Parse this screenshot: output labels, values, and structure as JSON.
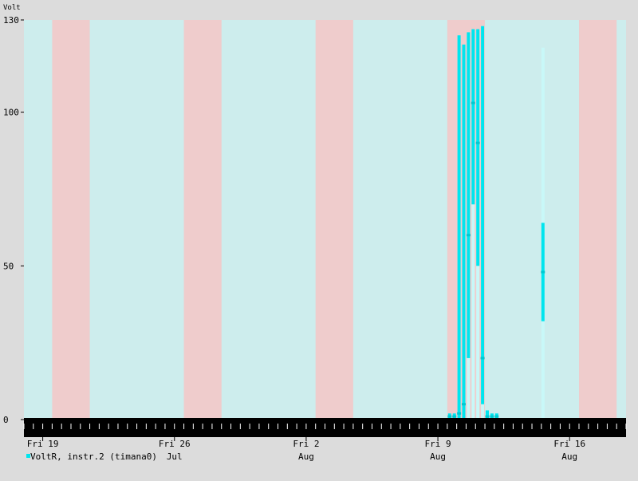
{
  "chart_data": {
    "type": "area",
    "unit_label": "Volt",
    "ylim": [
      0,
      130
    ],
    "y_ticks": [
      0,
      50,
      100,
      130
    ],
    "y_tick_labels": [
      "0",
      "50",
      "100",
      "130"
    ],
    "x_range": [
      "2024-07-18T00:00",
      "2024-08-19T00:00"
    ],
    "x_ticks": [
      {
        "date": "2024-07-19",
        "line1": "Fri 19",
        "line2": ""
      },
      {
        "date": "2024-07-26",
        "line1": "Fri 26",
        "line2": "Jul"
      },
      {
        "date": "2024-08-02",
        "line1": "Fri 2",
        "line2": "Aug"
      },
      {
        "date": "2024-08-09",
        "line1": "Fri 9",
        "line2": "Aug"
      },
      {
        "date": "2024-08-16",
        "line1": "Fri 16",
        "line2": "Aug"
      }
    ],
    "weekend_bands": [
      [
        "2024-07-19T12:00",
        "2024-07-21T12:00"
      ],
      [
        "2024-07-26T12:00",
        "2024-07-28T12:00"
      ],
      [
        "2024-08-02T12:00",
        "2024-08-04T12:00"
      ],
      [
        "2024-08-09T12:00",
        "2024-08-11T12:00"
      ],
      [
        "2024-08-16T12:00",
        "2024-08-18T12:00"
      ]
    ],
    "series": [
      {
        "name": "VoltR, instr.2 (timana0)",
        "color": "#00e5ee",
        "max_color": "#c8f8f8",
        "points": [
          {
            "t": "2024-08-09T15:00",
            "min": 0,
            "avg": 1,
            "max": 2
          },
          {
            "t": "2024-08-09T21:00",
            "min": 0,
            "avg": 1,
            "max": 2
          },
          {
            "t": "2024-08-10T03:00",
            "min": 0,
            "avg": 2,
            "max": 125
          },
          {
            "t": "2024-08-10T09:00",
            "min": 0,
            "avg": 5,
            "max": 122
          },
          {
            "t": "2024-08-10T15:00",
            "min": 20,
            "avg": 60,
            "max": 126
          },
          {
            "t": "2024-08-10T21:00",
            "min": 70,
            "avg": 103,
            "max": 127
          },
          {
            "t": "2024-08-11T03:00",
            "min": 50,
            "avg": 90,
            "max": 127
          },
          {
            "t": "2024-08-11T09:00",
            "min": 5,
            "avg": 20,
            "max": 128
          },
          {
            "t": "2024-08-11T15:00",
            "min": 0,
            "avg": 1,
            "max": 3
          },
          {
            "t": "2024-08-11T21:00",
            "min": 0,
            "avg": 1,
            "max": 2
          },
          {
            "t": "2024-08-12T03:00",
            "min": 0,
            "avg": 1,
            "max": 2
          },
          {
            "t": "2024-08-14T14:00",
            "min": 32,
            "avg": 48,
            "max": 64,
            "peak": 121
          }
        ]
      }
    ],
    "grid": false,
    "legend_position": "bottom-left"
  }
}
